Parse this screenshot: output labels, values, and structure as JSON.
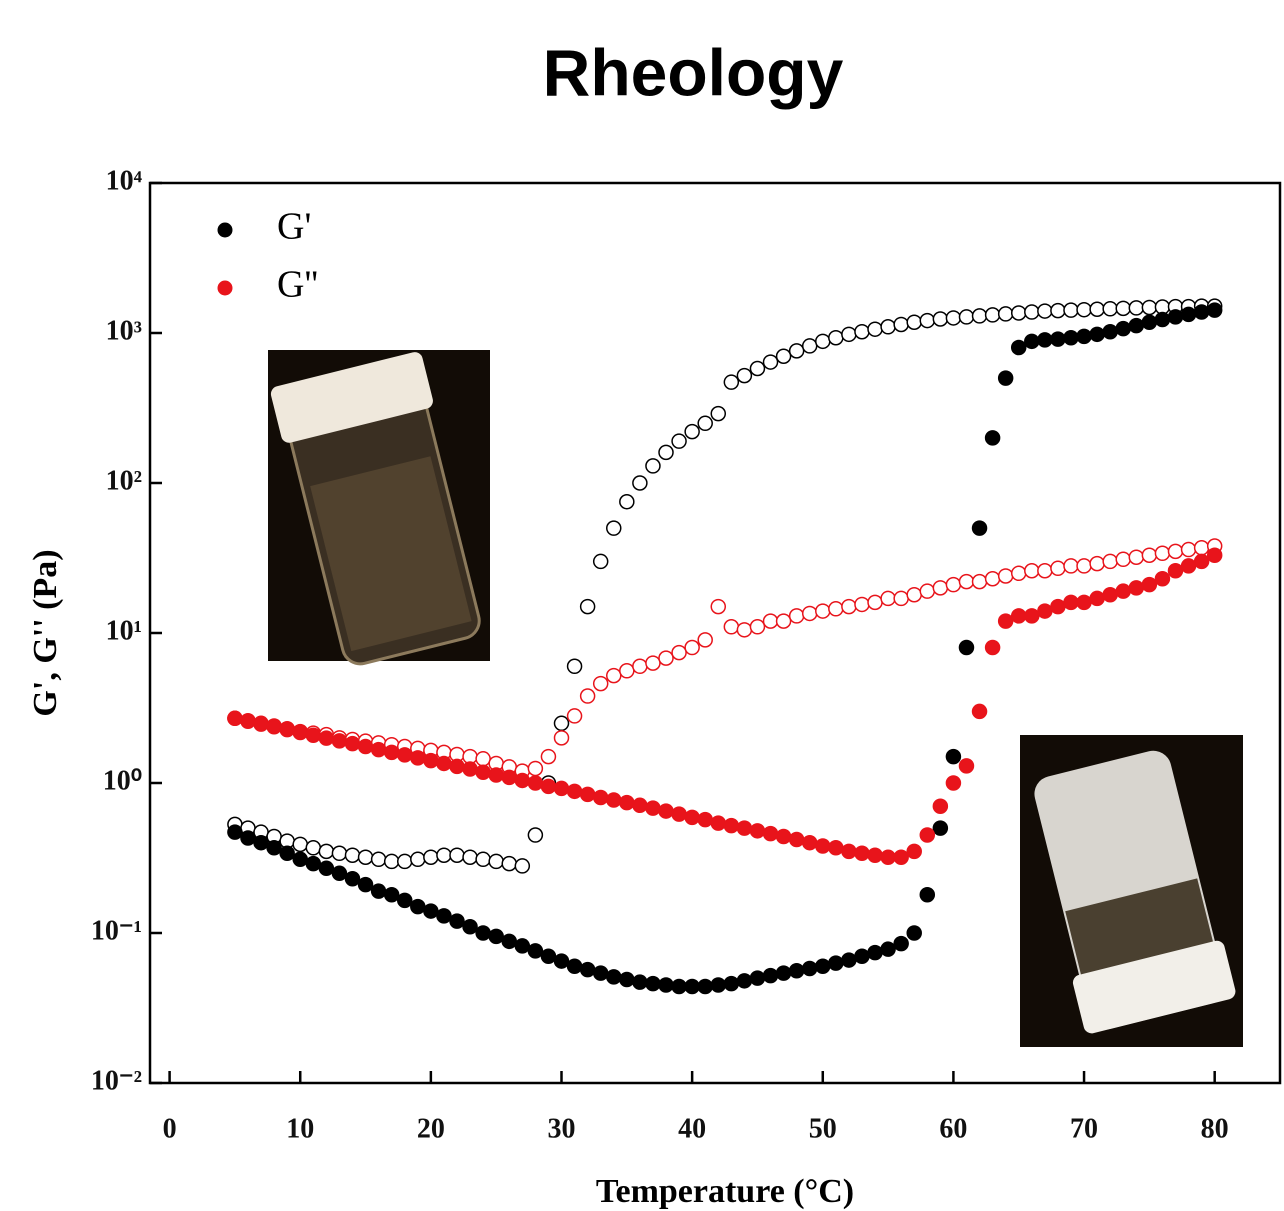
{
  "chart_data": {
    "type": "scatter",
    "title": "Rheology",
    "x_label": "Temperature (°C)",
    "y_label": "G', G'' (Pa)",
    "log_y": true,
    "legend": "upper left",
    "xlim": [
      -1.5,
      85
    ],
    "ylim": [
      0.01,
      10000
    ],
    "xticks": [
      0,
      10,
      20,
      30,
      40,
      50,
      60,
      70,
      80
    ],
    "yticks": [
      {
        "value": 0.01,
        "label": "10⁻²"
      },
      {
        "value": 0.1,
        "label": "10⁻¹"
      },
      {
        "value": 1,
        "label": "10⁰"
      },
      {
        "value": 10,
        "label": "10¹"
      },
      {
        "value": 100,
        "label": "10²"
      },
      {
        "value": 1000,
        "label": "10³"
      },
      {
        "value": 10000,
        "label": "10⁴"
      }
    ],
    "x": [
      5,
      6,
      7,
      8,
      9,
      10,
      11,
      12,
      13,
      14,
      15,
      16,
      17,
      18,
      19,
      20,
      21,
      22,
      23,
      24,
      25,
      26,
      27,
      28,
      29,
      30,
      31,
      32,
      33,
      34,
      35,
      36,
      37,
      38,
      39,
      40,
      41,
      42,
      43,
      44,
      45,
      46,
      47,
      48,
      49,
      50,
      51,
      52,
      53,
      54,
      55,
      56,
      57,
      58,
      59,
      60,
      61,
      62,
      63,
      64,
      65,
      66,
      67,
      68,
      69,
      70,
      71,
      72,
      73,
      74,
      75,
      76,
      77,
      78,
      79,
      80
    ],
    "series": [
      {
        "name": "G'",
        "color": "#000000",
        "filled": true,
        "values": [
          0.47,
          0.43,
          0.4,
          0.37,
          0.34,
          0.31,
          0.29,
          0.27,
          0.25,
          0.23,
          0.21,
          0.19,
          0.18,
          0.165,
          0.15,
          0.14,
          0.13,
          0.12,
          0.11,
          0.1,
          0.095,
          0.088,
          0.082,
          0.076,
          0.07,
          0.065,
          0.06,
          0.057,
          0.054,
          0.051,
          0.049,
          0.047,
          0.046,
          0.045,
          0.044,
          0.044,
          0.044,
          0.045,
          0.046,
          0.048,
          0.05,
          0.052,
          0.054,
          0.056,
          0.058,
          0.06,
          0.063,
          0.066,
          0.07,
          0.074,
          0.078,
          0.085,
          0.1,
          0.18,
          0.5,
          1.5,
          8,
          50,
          200,
          500,
          800,
          880,
          900,
          910,
          930,
          950,
          980,
          1020,
          1070,
          1120,
          1180,
          1230,
          1280,
          1330,
          1380,
          1420
        ]
      },
      {
        "name": "G''",
        "color": "#e8141b",
        "filled": true,
        "values": [
          2.7,
          2.58,
          2.47,
          2.37,
          2.27,
          2.17,
          2.08,
          1.99,
          1.91,
          1.83,
          1.75,
          1.67,
          1.6,
          1.54,
          1.47,
          1.41,
          1.35,
          1.29,
          1.24,
          1.18,
          1.13,
          1.09,
          1.04,
          1.0,
          0.95,
          0.92,
          0.88,
          0.84,
          0.8,
          0.77,
          0.74,
          0.71,
          0.68,
          0.65,
          0.62,
          0.59,
          0.57,
          0.54,
          0.52,
          0.5,
          0.48,
          0.46,
          0.44,
          0.42,
          0.4,
          0.38,
          0.37,
          0.35,
          0.34,
          0.33,
          0.32,
          0.32,
          0.35,
          0.45,
          0.7,
          1.0,
          1.3,
          3,
          8,
          12,
          13,
          13,
          14,
          15,
          16,
          16,
          17,
          18,
          19,
          20,
          21,
          23,
          26,
          28,
          30,
          33
        ]
      },
      {
        "color": "#000000",
        "filled": false,
        "values": [
          0.53,
          0.5,
          0.47,
          0.44,
          0.41,
          0.39,
          0.37,
          0.35,
          0.34,
          0.33,
          0.32,
          0.31,
          0.3,
          0.3,
          0.31,
          0.32,
          0.33,
          0.33,
          0.32,
          0.31,
          0.3,
          0.29,
          0.28,
          0.45,
          1.0,
          2.5,
          6,
          15,
          30,
          50,
          75,
          100,
          130,
          160,
          190,
          220,
          250,
          290,
          470,
          520,
          580,
          640,
          700,
          760,
          820,
          880,
          930,
          980,
          1020,
          1060,
          1100,
          1140,
          1180,
          1210,
          1240,
          1260,
          1280,
          1300,
          1320,
          1340,
          1360,
          1380,
          1400,
          1410,
          1420,
          1430,
          1440,
          1450,
          1460,
          1470,
          1480,
          1490,
          1500,
          1500,
          1510,
          1510
        ]
      },
      {
        "color": "#e8141b",
        "filled": false,
        "values": [
          2.7,
          2.6,
          2.5,
          2.4,
          2.3,
          2.2,
          2.15,
          2.1,
          2.0,
          1.95,
          1.9,
          1.85,
          1.8,
          1.75,
          1.7,
          1.65,
          1.6,
          1.55,
          1.5,
          1.45,
          1.35,
          1.28,
          1.2,
          1.25,
          1.5,
          2.0,
          2.8,
          3.8,
          4.6,
          5.2,
          5.6,
          6,
          6.3,
          6.8,
          7.4,
          8,
          9,
          15,
          11,
          10.5,
          11,
          12,
          12,
          13,
          13.5,
          14,
          14.5,
          15,
          15.5,
          16,
          17,
          17,
          18,
          19,
          20,
          21,
          22,
          22,
          23,
          24,
          25,
          26,
          26,
          27,
          28,
          28,
          29,
          30,
          31,
          32,
          33,
          34,
          35,
          36,
          37,
          38
        ]
      }
    ]
  }
}
